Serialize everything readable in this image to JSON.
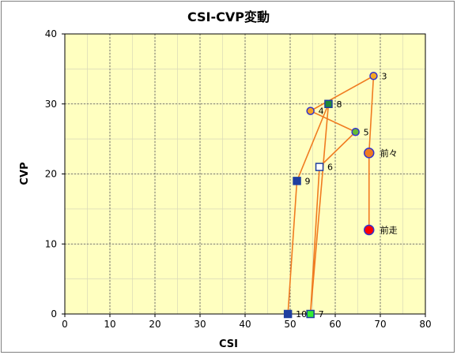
{
  "chart_data": {
    "type": "scatter",
    "title": "CSI-CVP変動",
    "xlabel": "CSI",
    "ylabel": "CVP",
    "xlim": [
      0,
      80
    ],
    "ylim": [
      0,
      40
    ],
    "xticks": [
      0,
      10,
      20,
      30,
      40,
      50,
      60,
      70,
      80
    ],
    "yticks": [
      0,
      10,
      20,
      30,
      40
    ],
    "grid": true,
    "minor_grid": true,
    "plot_background": "#ffffc0",
    "line_color": "#f07b20",
    "series": [
      {
        "points": [
          {
            "label": "前走",
            "x": 67.5,
            "y": 12,
            "marker": "circle-large",
            "fill": "#ff0000",
            "stroke": "#3333cc"
          },
          {
            "label": "前々",
            "x": 67.5,
            "y": 23,
            "marker": "circle-large",
            "fill": "#f07b20",
            "stroke": "#3333cc"
          },
          {
            "label": "3",
            "x": 68.5,
            "y": 34,
            "marker": "circle",
            "fill": "#f5a623",
            "stroke": "#3333cc"
          },
          {
            "label": "4",
            "x": 54.5,
            "y": 29,
            "marker": "circle",
            "fill": "#f5a623",
            "stroke": "#3333cc"
          },
          {
            "label": "5",
            "x": 64.5,
            "y": 26,
            "marker": "circle",
            "fill": "#66bb33",
            "stroke": "#3333cc"
          },
          {
            "label": "6",
            "x": 56.5,
            "y": 21,
            "marker": "square",
            "fill": "#ffffff",
            "stroke": "#1f3fa0"
          },
          {
            "label": "7",
            "x": 54.5,
            "y": 0,
            "marker": "square",
            "fill": "#33ee33",
            "stroke": "#1f3fa0"
          },
          {
            "label": "8",
            "x": 58.5,
            "y": 30,
            "marker": "square",
            "fill": "#1f8a3a",
            "stroke": "#1f3fa0"
          },
          {
            "label": "9",
            "x": 51.5,
            "y": 19,
            "marker": "square",
            "fill": "#1f3fa0",
            "stroke": "#1f3fa0"
          },
          {
            "label": "10",
            "x": 49.5,
            "y": 0,
            "marker": "square",
            "fill": "#1f3fa0",
            "stroke": "#1f3fa0"
          }
        ]
      }
    ]
  }
}
